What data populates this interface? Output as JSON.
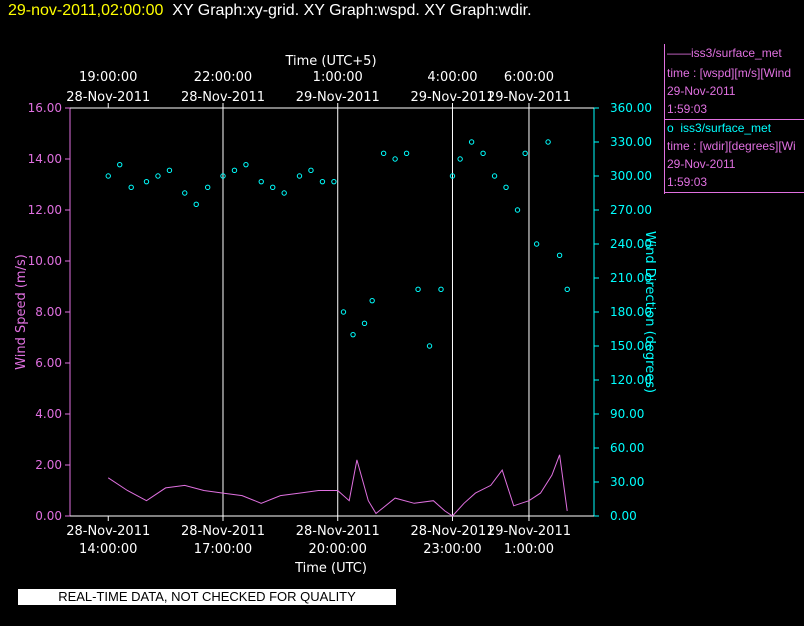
{
  "header": {
    "timestamp": "29-nov-2011,02:00:00",
    "graphs": "XY Graph:xy-grid.  XY Graph:wspd.  XY Graph:wdir."
  },
  "legend": {
    "wspd": {
      "symbol": "——",
      "source": "iss3/surface_met",
      "line": "time : [wspd][m/s][Wind",
      "date": "29-Nov-2011",
      "time": "1:59:03"
    },
    "wdir": {
      "symbol": "o",
      "source": "iss3/surface_met",
      "line": "time : [wdir][degrees][Wi",
      "date": "29-Nov-2011",
      "time": "1:59:03"
    }
  },
  "quality_note": "REAL-TIME DATA, NOT CHECKED FOR QUALITY",
  "colors": {
    "speed": "#e070e0",
    "direction": "#00ffff",
    "grid": "#ffffff",
    "timestamp": "#ffff00"
  },
  "chart_data": {
    "type": "line+scatter",
    "xlim_utc_hours": [
      13.0,
      26.7
    ],
    "top_axis": {
      "label": "Time (UTC+5)",
      "ticks": [
        {
          "hour": 14,
          "time": "19:00:00",
          "date": "28-Nov-2011"
        },
        {
          "hour": 17,
          "time": "22:00:00",
          "date": "28-Nov-2011"
        },
        {
          "hour": 20,
          "time": "1:00:00",
          "date": "29-Nov-2011"
        },
        {
          "hour": 23,
          "time": "4:00:00",
          "date": "29-Nov-2011"
        },
        {
          "hour": 25,
          "time": "6:00:00",
          "date": "29-Nov-2011"
        }
      ]
    },
    "bottom_axis": {
      "label": "Time (UTC)",
      "ticks": [
        {
          "hour": 14,
          "date": "28-Nov-2011",
          "time": "14:00:00"
        },
        {
          "hour": 17,
          "date": "28-Nov-2011",
          "time": "17:00:00"
        },
        {
          "hour": 20,
          "date": "28-Nov-2011",
          "time": "20:00:00"
        },
        {
          "hour": 23,
          "date": "28-Nov-2011",
          "time": "23:00:00"
        },
        {
          "hour": 25,
          "date": "29-Nov-2011",
          "time": "1:00:00"
        }
      ]
    },
    "y_left": {
      "label": "Wind Speed (m/s)",
      "ylim": [
        0,
        16
      ],
      "ticks": [
        "0.00",
        "2.00",
        "4.00",
        "6.00",
        "8.00",
        "10.00",
        "12.00",
        "14.00",
        "16.00"
      ]
    },
    "y_right": {
      "label": "Wind Direction (degrees)",
      "ylim": [
        0,
        360
      ],
      "ticks": [
        "0.00",
        "30.00",
        "60.00",
        "90.00",
        "120.00",
        "150.00",
        "180.00",
        "210.00",
        "240.00",
        "270.00",
        "300.00",
        "330.00",
        "360.00"
      ]
    },
    "vertical_grid_hours": [
      17,
      20,
      23,
      25
    ],
    "series": [
      {
        "type": "line",
        "color": "#e070e0",
        "x": [
          14.0,
          14.5,
          15.0,
          15.5,
          16.0,
          16.5,
          17.0,
          17.5,
          18.0,
          18.5,
          19.0,
          19.5,
          20.0,
          20.3,
          20.5,
          20.8,
          21.0,
          21.5,
          22.0,
          22.5,
          22.8,
          23.0,
          23.3,
          23.6,
          24.0,
          24.3,
          24.6,
          25.0,
          25.3,
          25.6,
          25.8,
          26.0
        ],
        "values": [
          1.5,
          1.0,
          0.6,
          1.1,
          1.2,
          1.0,
          0.9,
          0.8,
          0.5,
          0.8,
          0.9,
          1.0,
          1.0,
          0.6,
          2.2,
          0.6,
          0.1,
          0.7,
          0.5,
          0.6,
          0.2,
          0.0,
          0.5,
          0.9,
          1.2,
          1.8,
          0.4,
          0.6,
          0.9,
          1.6,
          2.4,
          0.2
        ]
      },
      {
        "type": "scatter",
        "color": "#00ffff",
        "x": [
          14.0,
          14.3,
          14.6,
          15.0,
          15.3,
          15.6,
          16.0,
          16.3,
          16.6,
          17.0,
          17.3,
          17.6,
          18.0,
          18.3,
          18.6,
          19.0,
          19.3,
          19.6,
          19.9,
          20.15,
          20.4,
          20.7,
          20.9,
          21.2,
          21.5,
          21.8,
          22.1,
          22.4,
          22.7,
          23.0,
          23.2,
          23.5,
          23.8,
          24.1,
          24.4,
          24.7,
          24.9,
          25.2,
          25.5,
          25.8,
          26.0
        ],
        "values": [
          300,
          310,
          290,
          295,
          300,
          305,
          285,
          275,
          290,
          300,
          305,
          310,
          295,
          290,
          285,
          300,
          305,
          295,
          295,
          180,
          160,
          170,
          190,
          320,
          315,
          320,
          200,
          150,
          200,
          300,
          315,
          330,
          320,
          300,
          290,
          270,
          320,
          240,
          330,
          230,
          200
        ]
      }
    ]
  }
}
